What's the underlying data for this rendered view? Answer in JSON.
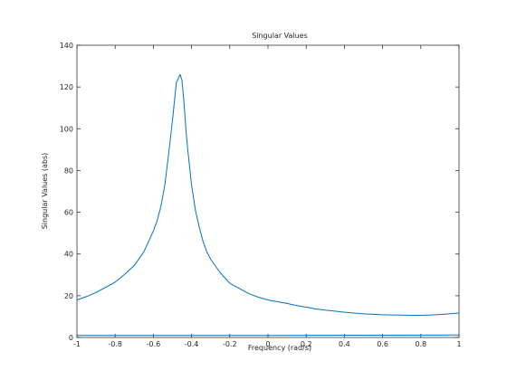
{
  "chart_data": {
    "type": "line",
    "title": "Singular Values",
    "xlabel": "Frequency (rad/s)",
    "ylabel": "Singular Values (abs)",
    "xlim": [
      -1,
      1
    ],
    "ylim": [
      0,
      140
    ],
    "xticks": [
      -1,
      -0.8,
      -0.6,
      -0.4,
      -0.2,
      0,
      0.2,
      0.4,
      0.6,
      0.8,
      1
    ],
    "xtick_labels": [
      "-1",
      "-0.8",
      "-0.6",
      "-0.4",
      "-0.2",
      "0",
      "0.2",
      "0.4",
      "0.6",
      "0.8",
      "1"
    ],
    "yticks": [
      0,
      20,
      40,
      60,
      80,
      100,
      120,
      140
    ],
    "ytick_labels": [
      "0",
      "20",
      "40",
      "60",
      "80",
      "100",
      "120",
      "140"
    ],
    "grid": false,
    "line_color": "#0072BD",
    "series": [
      {
        "x": [
          -1,
          -0.95,
          -0.9,
          -0.85,
          -0.8,
          -0.75,
          -0.7,
          -0.65,
          -0.6,
          -0.58,
          -0.56,
          -0.54,
          -0.52,
          -0.5,
          -0.48,
          -0.47,
          -0.46,
          -0.45,
          -0.44,
          -0.43,
          -0.42,
          -0.4,
          -0.38,
          -0.36,
          -0.34,
          -0.32,
          -0.3,
          -0.25,
          -0.2,
          -0.15,
          -0.1,
          -0.05,
          0,
          0.05,
          0.1,
          0.15,
          0.2,
          0.25,
          0.3,
          0.35,
          0.4,
          0.45,
          0.5,
          0.55,
          0.6,
          0.65,
          0.7,
          0.75,
          0.8,
          0.85,
          0.9,
          0.95,
          1
        ],
        "y": [
          18,
          19.6,
          21.6,
          24,
          26.5,
          30.3,
          34.5,
          41,
          51,
          56,
          63,
          73,
          88,
          104,
          122,
          124,
          126,
          123,
          113,
          100,
          90,
          73,
          61,
          53,
          46,
          41,
          37.5,
          31,
          26,
          23.5,
          21,
          19.3,
          18,
          17.1,
          16.3,
          15.3,
          14.5,
          13.7,
          13.1,
          12.6,
          12.1,
          11.7,
          11.3,
          11.1,
          10.9,
          10.8,
          10.7,
          10.6,
          10.6,
          10.8,
          11,
          11.3,
          11.7
        ]
      },
      {
        "x": [
          -1,
          -0.5,
          0,
          0.5,
          1
        ],
        "y": [
          1,
          1,
          1,
          1.1,
          1.2
        ]
      }
    ]
  }
}
